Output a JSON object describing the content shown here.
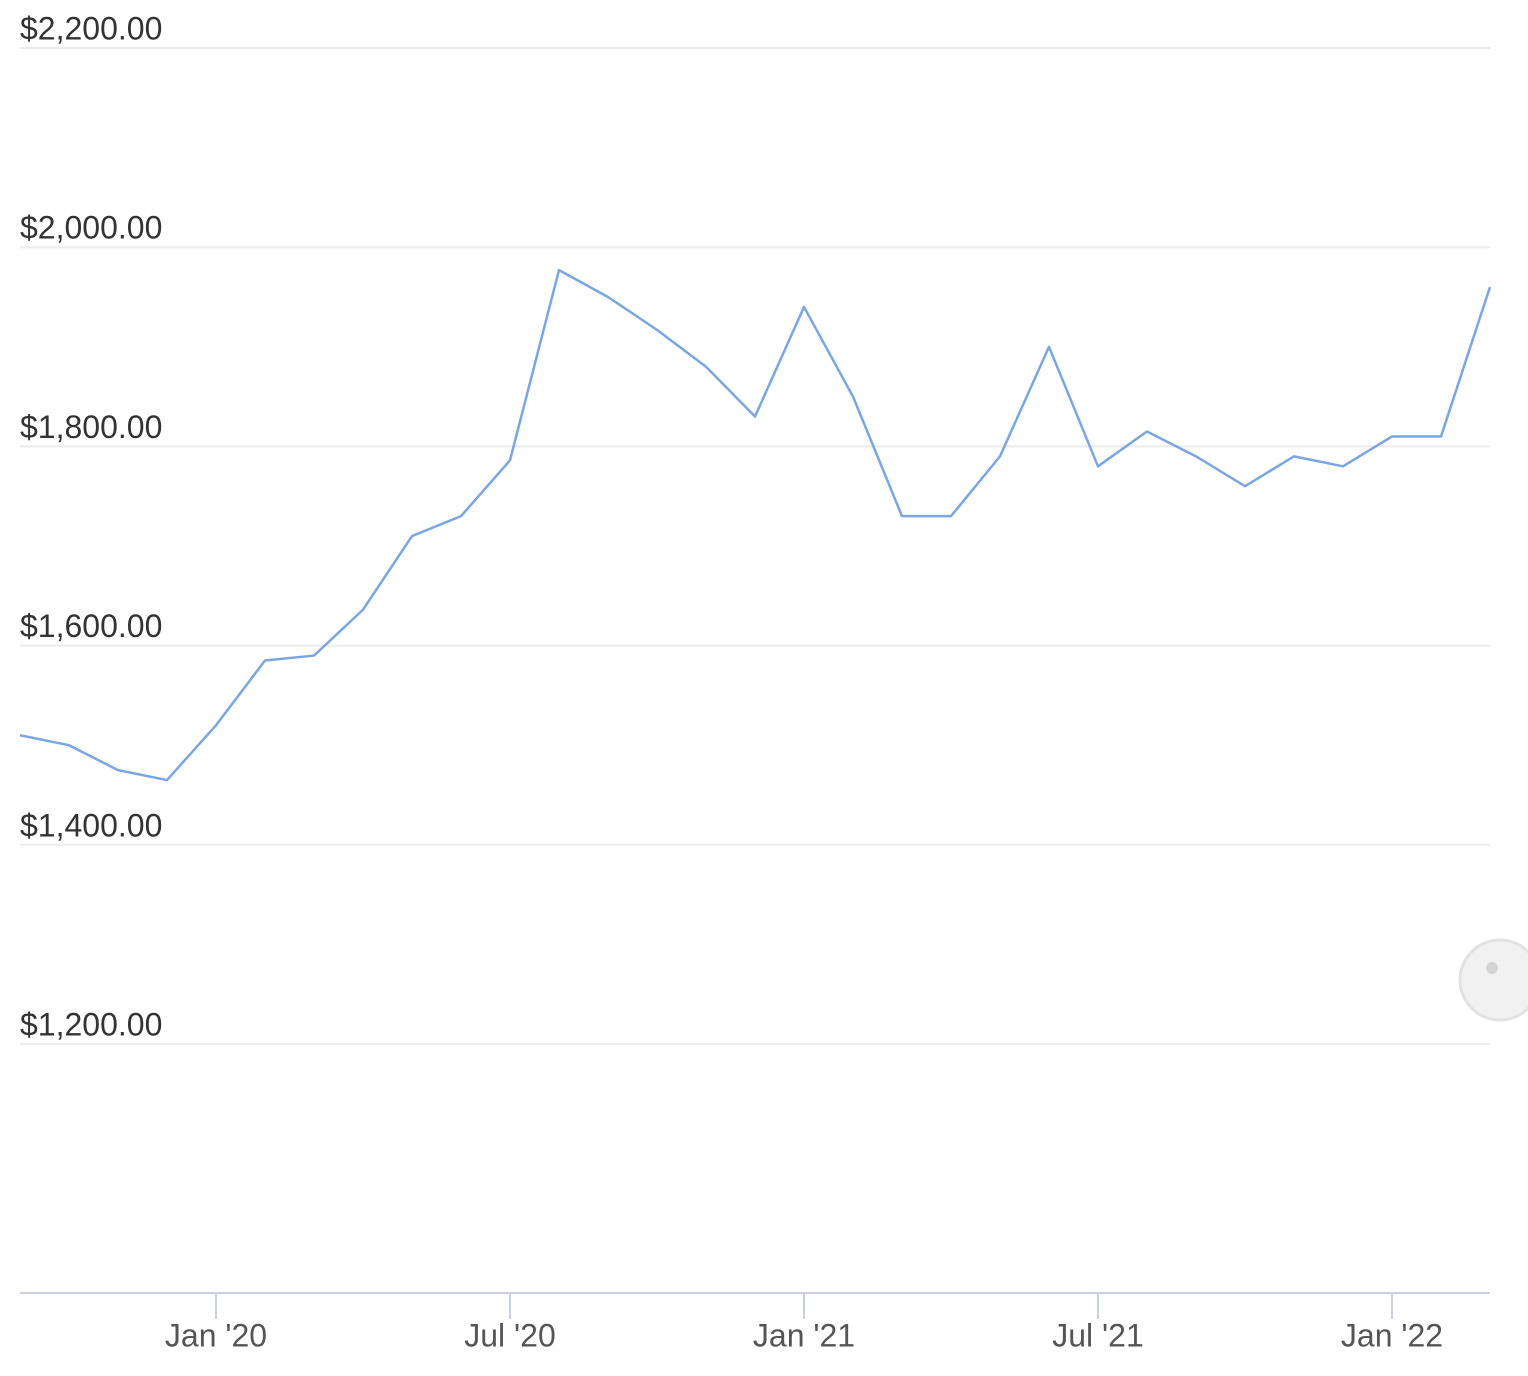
{
  "chart_data": {
    "type": "line",
    "x": [
      "2019-09",
      "2019-10",
      "2019-11",
      "2019-12",
      "2020-01",
      "2020-02",
      "2020-03",
      "2020-04",
      "2020-05",
      "2020-06",
      "2020-07",
      "2020-08",
      "2020-09",
      "2020-10",
      "2020-11",
      "2020-12",
      "2021-01",
      "2021-02",
      "2021-03",
      "2021-04",
      "2021-05",
      "2021-06",
      "2021-07",
      "2021-08",
      "2021-09",
      "2021-10",
      "2021-11",
      "2021-12",
      "2022-01",
      "2022-02",
      "2022-03"
    ],
    "values": [
      1510,
      1500,
      1475,
      1465,
      1520,
      1585,
      1590,
      1636,
      1710,
      1730,
      1786,
      1977,
      1950,
      1917,
      1880,
      1830,
      1940,
      1850,
      1730,
      1730,
      1790,
      1900,
      1780,
      1815,
      1790,
      1760,
      1790,
      1780,
      1810,
      1810,
      1960
    ],
    "color": "#7aa6e1",
    "xlim": [
      "2019-09",
      "2022-03"
    ],
    "xticks": [
      {
        "value": "2020-01",
        "label": "Jan '20"
      },
      {
        "value": "2020-07",
        "label": "Jul '20"
      },
      {
        "value": "2021-01",
        "label": "Jan '21"
      },
      {
        "value": "2021-07",
        "label": "Jul '21"
      },
      {
        "value": "2022-01",
        "label": "Jan '22"
      }
    ],
    "ylim": [
      950,
      2200
    ],
    "yticks": [
      {
        "value": 1200,
        "label": "$1,200.00"
      },
      {
        "value": 1400,
        "label": "$1,400.00"
      },
      {
        "value": 1600,
        "label": "$1,600.00"
      },
      {
        "value": 1800,
        "label": "$1,800.00"
      },
      {
        "value": 2000,
        "label": "$2,000.00"
      },
      {
        "value": 2200,
        "label": "$2,200.00"
      }
    ],
    "grid": true
  }
}
